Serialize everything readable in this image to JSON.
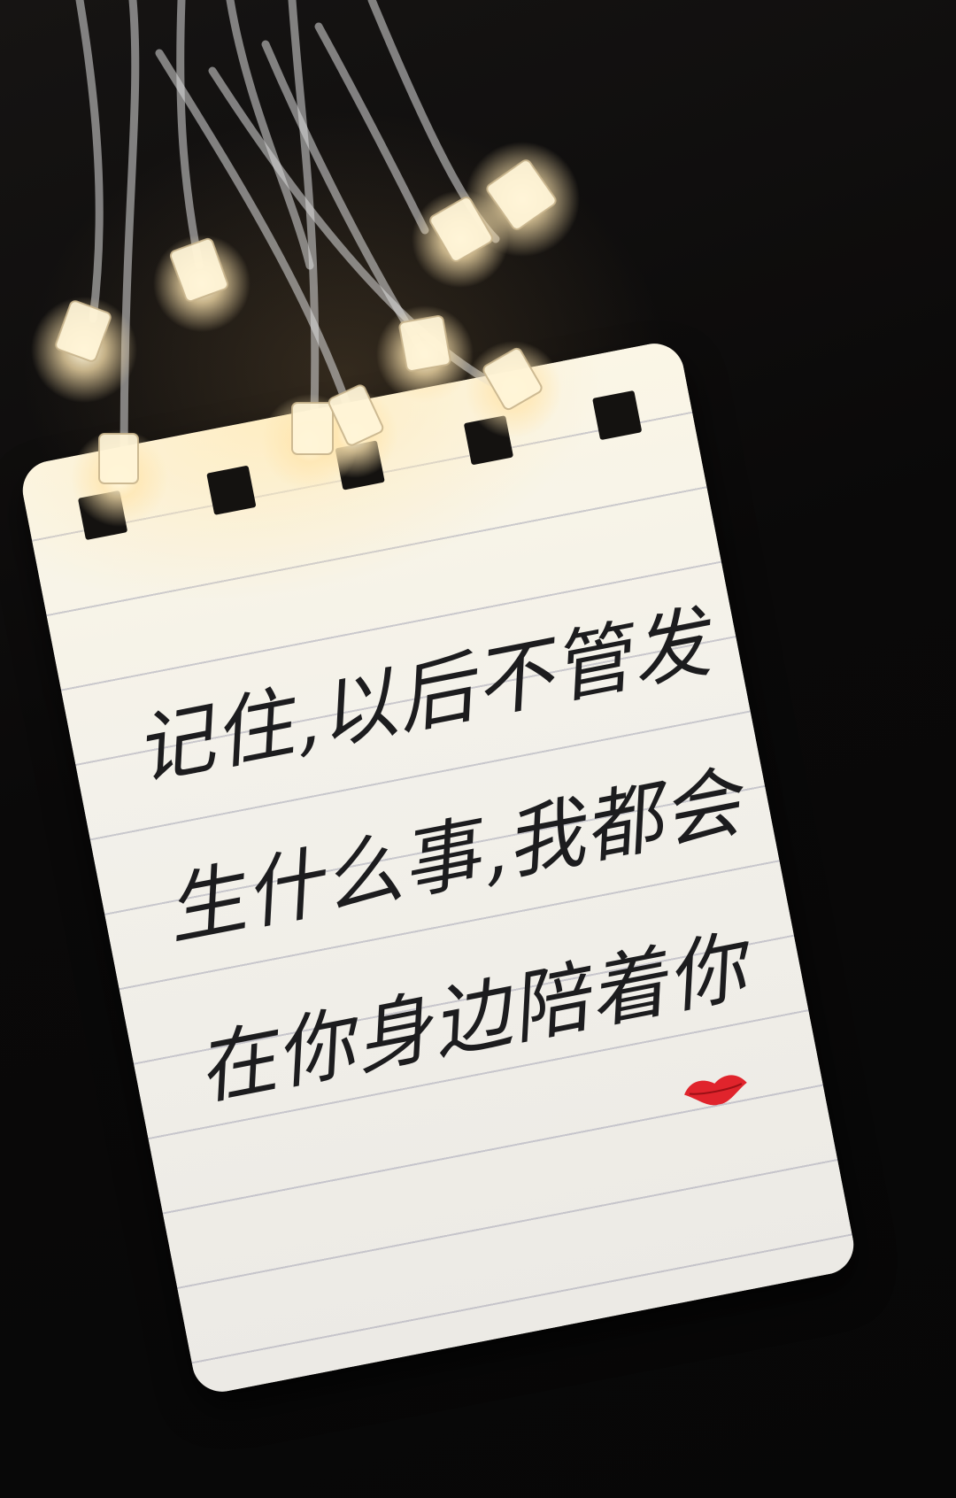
{
  "note": {
    "lines": [
      "记住,以后不管发",
      "生什么事,我都会",
      "在你身边陪着你"
    ]
  },
  "colors": {
    "background": "#0b0a0b",
    "paper": "#f3f1ea",
    "ruled_line": "#9696aa",
    "ink": "#1c1c1e",
    "kiss": "#e0242c",
    "light_glow": "#ffe6b0"
  },
  "icons": {
    "kiss": "lip-print-icon",
    "lights": "fairy-lights-icon"
  }
}
